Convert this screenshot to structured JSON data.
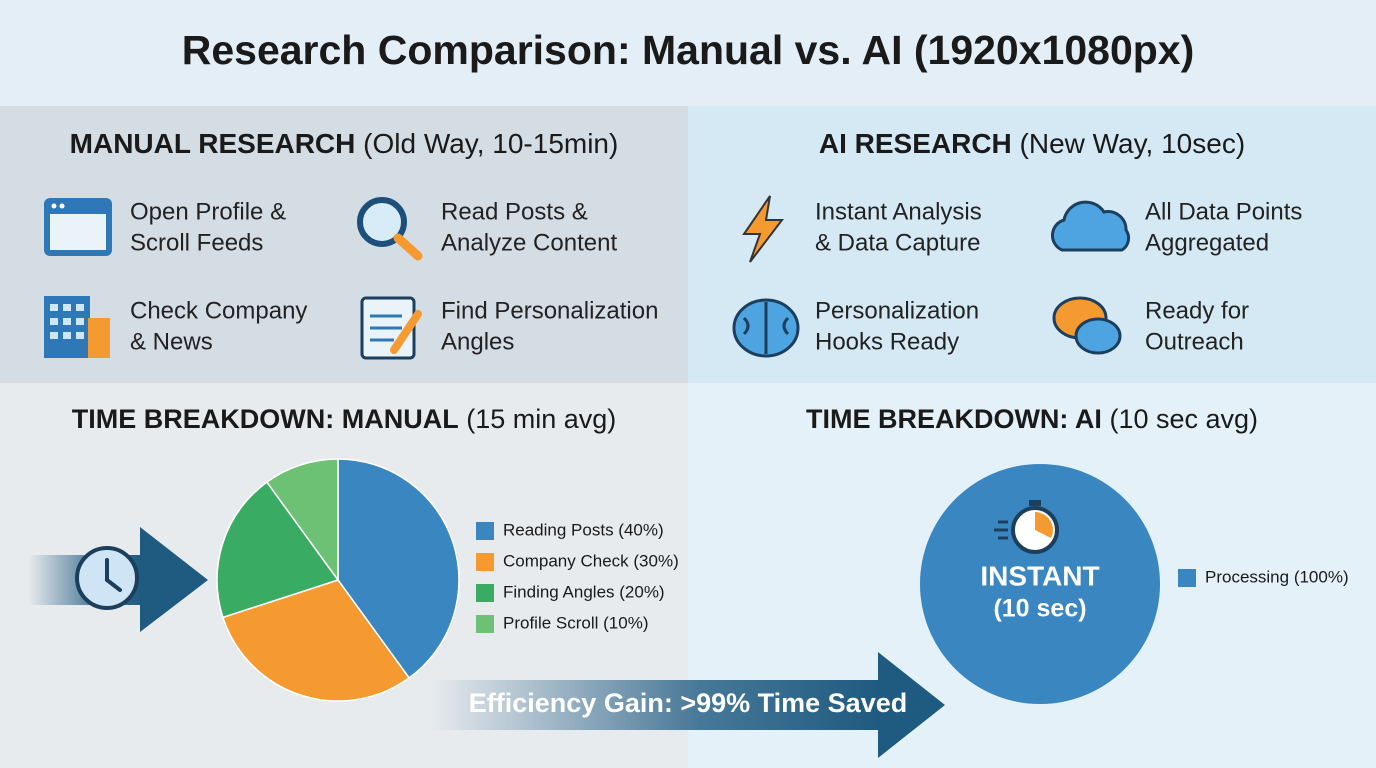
{
  "header": {
    "title": "Research Comparison: Manual vs. AI (1920x1080px)"
  },
  "panels": [
    {
      "heading": "MANUAL RESEARCH",
      "note": "(Old Way, 10-15min)",
      "items": [
        [
          "Open Profile &",
          "Scroll Feeds"
        ],
        [
          "Read Posts &",
          "Analyze Content"
        ],
        [
          "Check Company",
          "& News"
        ],
        [
          "Find Personalization",
          "Angles"
        ]
      ]
    },
    {
      "heading": "AI RESEARCH",
      "note": "(New Way, 10sec)",
      "items": [
        [
          "Instant Analysis",
          "& Data Capture"
        ],
        [
          "All Data Points",
          "Aggregated"
        ],
        [
          "Personalization",
          "Hooks Ready"
        ],
        [
          "Ready for",
          "Outreach"
        ]
      ]
    }
  ],
  "banner": "Efficiency Gain: >99% Time Saved",
  "chart_data": [
    {
      "type": "pie",
      "title": "TIME BREAKDOWN: MANUAL",
      "subtitle": "(15 min avg)",
      "categories": [
        "Reading Posts (40%)",
        "Company Check (30%)",
        "Finding Angles (20%)",
        "Profile Scroll (10%)"
      ],
      "values": [
        40,
        30,
        20,
        10
      ],
      "colors": [
        "#3a86c1",
        "#f59a30",
        "#3aab62",
        "#6cc174"
      ]
    },
    {
      "type": "pie",
      "title": "TIME BREAKDOWN: AI",
      "subtitle": "(10 sec avg)",
      "categories": [
        "Processing (100%)"
      ],
      "values": [
        100
      ],
      "colors": [
        "#3a86c1"
      ],
      "annotations": [
        "INSTANT",
        "(10 sec)"
      ]
    }
  ]
}
